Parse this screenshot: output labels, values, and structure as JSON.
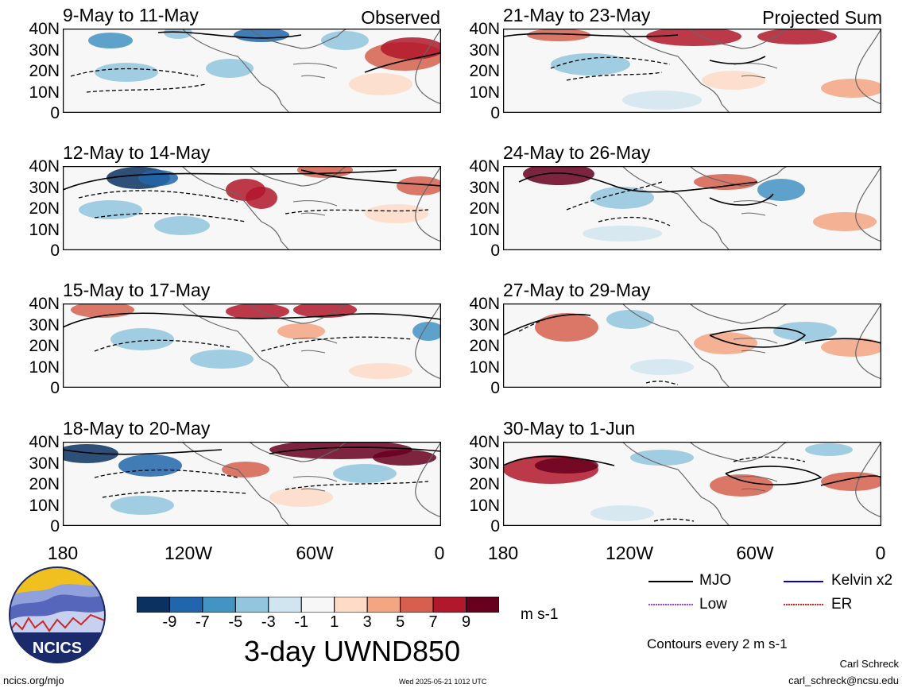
{
  "figure": {
    "observed_label": "Observed",
    "projected_label": "Projected Sum",
    "colorbar_title": "3-day UWND850",
    "units": "m s-1",
    "contour_note": "Contours every 2 m s-1",
    "footer_left": "ncics.org/mjo",
    "timestamp": "Wed 2025-05-21 1012 UTC",
    "author": "Carl Schreck",
    "email": "carl_schreck@ncsu.edu",
    "logo_text": "NCICS"
  },
  "panels": {
    "observed": [
      "9-May to 11-May",
      "12-May to 14-May",
      "15-May to 17-May",
      "18-May to 20-May"
    ],
    "projected": [
      "21-May to 23-May",
      "24-May to 26-May",
      "27-May to 29-May",
      "30-May to 1-Jun"
    ]
  },
  "axes": {
    "lat_ticks": [
      "40N",
      "30N",
      "20N",
      "10N",
      "0"
    ],
    "lon_ticks": [
      "180",
      "120W",
      "60W",
      "0"
    ]
  },
  "colorbar": {
    "tick_labels": [
      "-9",
      "-7",
      "-5",
      "-3",
      "-1",
      "1",
      "3",
      "5",
      "7",
      "9"
    ],
    "colors": [
      "#0a3160",
      "#2166ac",
      "#4393c3",
      "#92c5de",
      "#d1e5f0",
      "#f7f7f7",
      "#fddbc7",
      "#f4a582",
      "#d6604d",
      "#b2182b",
      "#67001f"
    ]
  },
  "legend": {
    "items": [
      {
        "label": "MJO",
        "color": "#000000"
      },
      {
        "label": "Kelvin x2",
        "color": "#0000cc"
      },
      {
        "label": "Low",
        "color": "#a040e0"
      },
      {
        "label": "ER",
        "color": "#e02020"
      }
    ]
  },
  "logo": {
    "colors": {
      "sky": "#f0c020",
      "mountains": "#5566bb",
      "ring": "#1a2a6a"
    }
  }
}
